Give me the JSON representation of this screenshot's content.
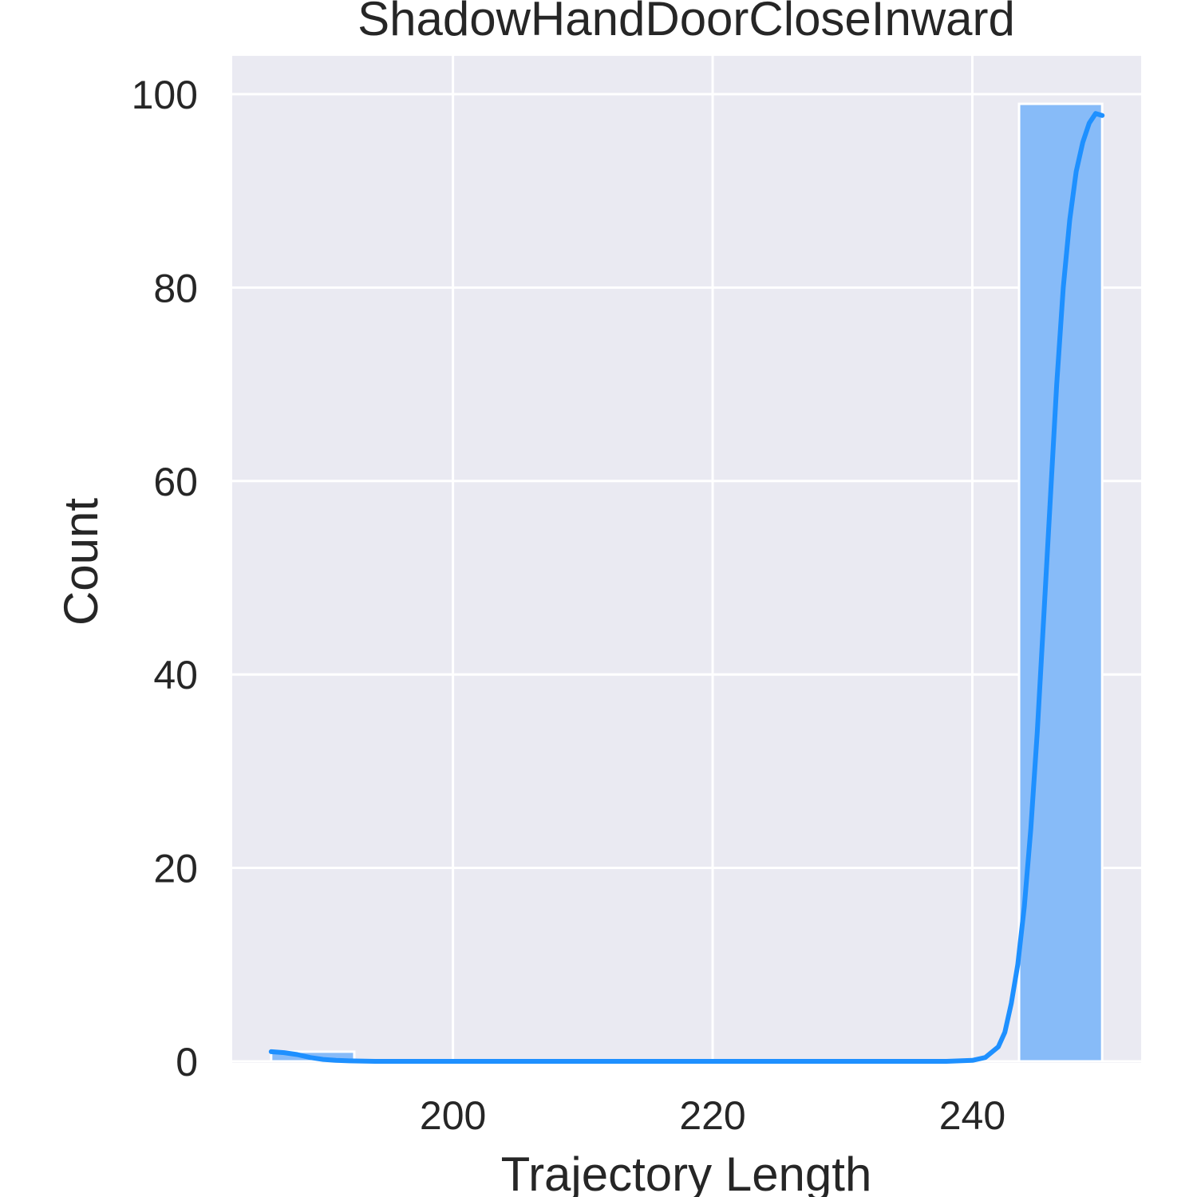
{
  "chart_data": {
    "type": "bar",
    "title": "ShadowHandDoorCloseInward",
    "xlabel": "Trajectory Length",
    "ylabel": "Count",
    "xlim": [
      183,
      253
    ],
    "ylim": [
      0,
      104
    ],
    "xticks": [
      200,
      220,
      240
    ],
    "yticks": [
      0,
      20,
      40,
      60,
      80,
      100
    ],
    "grid": true,
    "colors": {
      "background": "#eaeaf2",
      "grid": "#ffffff",
      "bar_fill": "#87bbf8",
      "kde_line": "#1e90ff"
    },
    "bins": [
      {
        "x0": 186.0,
        "x1": 192.4,
        "count": 1
      },
      {
        "x0": 192.4,
        "x1": 198.8,
        "count": 0
      },
      {
        "x0": 198.8,
        "x1": 205.2,
        "count": 0
      },
      {
        "x0": 205.2,
        "x1": 211.6,
        "count": 0
      },
      {
        "x0": 211.6,
        "x1": 218.0,
        "count": 0
      },
      {
        "x0": 218.0,
        "x1": 224.4,
        "count": 0
      },
      {
        "x0": 224.4,
        "x1": 230.8,
        "count": 0
      },
      {
        "x0": 230.8,
        "x1": 237.2,
        "count": 0
      },
      {
        "x0": 237.2,
        "x1": 243.6,
        "count": 0
      },
      {
        "x0": 243.6,
        "x1": 250.0,
        "count": 99
      }
    ],
    "kde": {
      "x": [
        186.0,
        187.0,
        188.0,
        189.0,
        190.0,
        191.0,
        192.0,
        194.0,
        200.0,
        210.0,
        220.0,
        230.0,
        238.0,
        240.0,
        241.0,
        242.0,
        242.5,
        243.0,
        243.5,
        244.0,
        244.5,
        245.0,
        245.5,
        246.0,
        246.5,
        247.0,
        247.5,
        248.0,
        248.5,
        249.0,
        249.5,
        250.0
      ],
      "y": [
        1.0,
        0.9,
        0.7,
        0.4,
        0.2,
        0.1,
        0.05,
        0.0,
        0.0,
        0.0,
        0.0,
        0.0,
        0.0,
        0.1,
        0.4,
        1.5,
        3.0,
        6.0,
        10.0,
        16.0,
        24.0,
        34.0,
        46.0,
        58.0,
        70.0,
        80.0,
        87.0,
        92.0,
        95.0,
        97.0,
        98.0,
        97.8
      ]
    }
  }
}
